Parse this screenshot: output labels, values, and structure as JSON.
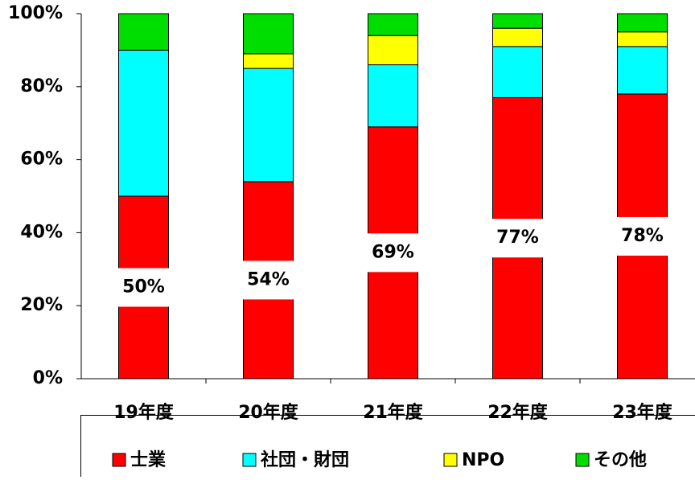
{
  "chart_data": {
    "type": "stacked-bar",
    "categories": [
      "19年度",
      "20年度",
      "21年度",
      "22年度",
      "23年度"
    ],
    "series": [
      {
        "name": "士業",
        "color": "#ff0000",
        "values": [
          50,
          54,
          69,
          77,
          78
        ],
        "value_labels": [
          "50%",
          "54%",
          "69%",
          "77%",
          "78%"
        ]
      },
      {
        "name": "社団・財団",
        "color": "#00ffff",
        "values": [
          40,
          31,
          17,
          14,
          13
        ]
      },
      {
        "name": "NPO",
        "color": "#ffff00",
        "values": [
          0,
          4,
          8,
          5,
          4
        ]
      },
      {
        "name": "その他",
        "color": "#00dd00",
        "values": [
          10,
          11,
          6,
          4,
          5
        ]
      }
    ],
    "ylim": [
      0,
      100
    ],
    "yticks": [
      {
        "value": 0,
        "label": "0%"
      },
      {
        "value": 20,
        "label": "20%"
      },
      {
        "value": 40,
        "label": "40%"
      },
      {
        "value": 60,
        "label": "60%"
      },
      {
        "value": 80,
        "label": "80%"
      },
      {
        "value": 100,
        "label": "100%"
      }
    ],
    "legend": "bottom"
  }
}
